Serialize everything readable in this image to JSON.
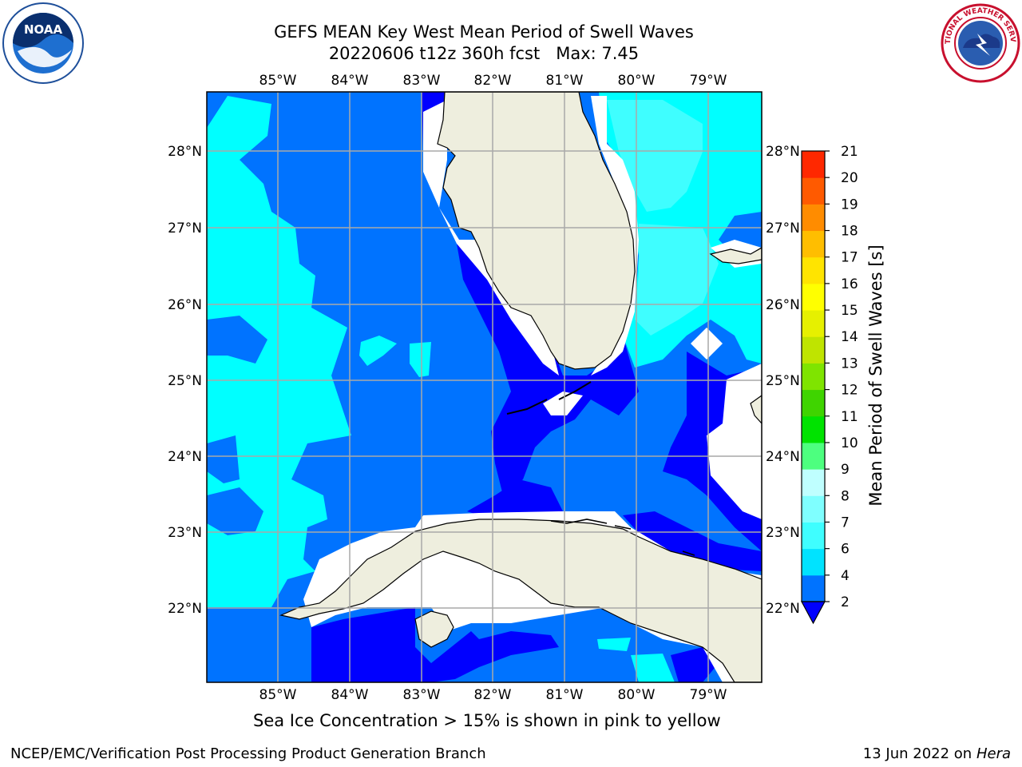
{
  "header": {
    "title_line1": "GEFS MEAN Key West Mean Period of Swell Waves",
    "title_line2": "20220606 t12z 360h fcst   Max: 7.45"
  },
  "logos": {
    "left": {
      "icon": "noaa-logo",
      "text": "NOAA"
    },
    "right": {
      "icon": "nws-logo",
      "text": "NATIONAL WEATHER SERVICE"
    }
  },
  "axes": {
    "lon_labels": [
      "85°W",
      "84°W",
      "83°W",
      "82°W",
      "81°W",
      "80°W",
      "79°W"
    ],
    "lat_labels": [
      "22°N",
      "23°N",
      "24°N",
      "25°N",
      "26°N",
      "27°N",
      "28°N"
    ]
  },
  "colorbar": {
    "label": "Mean Period of Swell Waves [s]",
    "ticks": [
      "2",
      "4",
      "6",
      "7",
      "8",
      "9",
      "10",
      "11",
      "12",
      "13",
      "14",
      "15",
      "16",
      "17",
      "18",
      "19",
      "20",
      "21"
    ],
    "colors": [
      "#0073ff",
      "#00e3ff",
      "#3ffeff",
      "#7fffff",
      "#bfffff",
      "#4dff7f",
      "#00e300",
      "#3fd400",
      "#7fe400",
      "#bfe400",
      "#e6f000",
      "#ffff00",
      "#ffe400",
      "#ffbe00",
      "#ff8c00",
      "#ff5a00",
      "#ff2800"
    ],
    "extend_color": "#0000ff"
  },
  "colors": {
    "land": "#eeeede",
    "deep_blue": "#0000ff",
    "mid_blue": "#0073ff",
    "cyan": "#00ffff",
    "light_cyan": "#3ffeff",
    "grid": "#a9a9a9"
  },
  "notes": {
    "ice": "Sea Ice Concentration > 15% is shown in pink to yellow"
  },
  "footer": {
    "left": "NCEP/EMC/Verification Post Processing Product Generation Branch",
    "date": "13 Jun 2022 on",
    "host": "Hera"
  }
}
